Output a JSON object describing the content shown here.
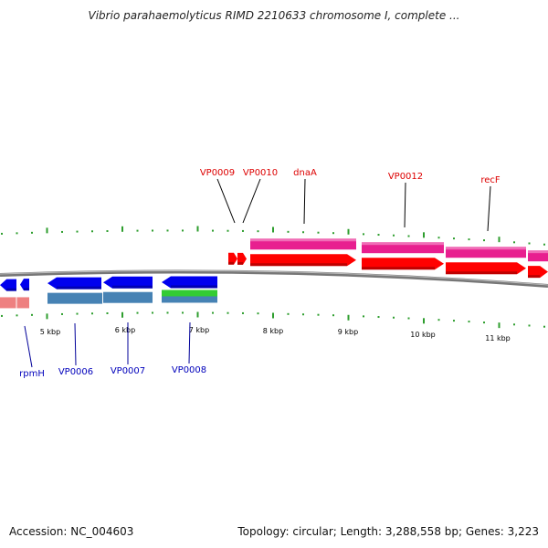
{
  "title": "Vibrio parahaemolyticus RIMD 2210633 chromosome I, complete ...",
  "footer": {
    "accession": "Accession: NC_004603",
    "summary": "Topology: circular; Length: 3,288,558 bp; Genes: 3,223"
  },
  "colors": {
    "forward_gene": "#ff0000",
    "forward_cds": "#e81f8f",
    "reverse_gene": "#0000ee",
    "reverse_cds": "#4682b4",
    "rna_gene": "#33cc33",
    "pseudo_light": "#ee8080",
    "backbone": "#777777",
    "tick": "#2e9e2e",
    "forward_label": "#dd0000",
    "reverse_label": "#0000bb"
  },
  "scale": {
    "ticks": [
      "5 kbp",
      "6 kbp",
      "7 kbp",
      "8 kbp",
      "9 kbp",
      "10 kbp",
      "11 kbp"
    ]
  },
  "forward_genes": [
    {
      "label": "VP0009"
    },
    {
      "label": "VP0010"
    },
    {
      "label": "dnaA"
    },
    {
      "label": "VP0012"
    },
    {
      "label": "recF"
    }
  ],
  "reverse_genes": [
    {
      "label": "rpmH"
    },
    {
      "label": "VP0006"
    },
    {
      "label": "VP0007"
    },
    {
      "label": "VP0008"
    }
  ]
}
